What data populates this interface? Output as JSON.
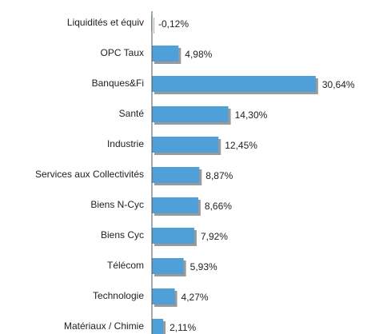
{
  "chart_data": {
    "type": "bar",
    "orientation": "horizontal",
    "categories": [
      "Liquidités et équiv",
      "OPC Taux",
      "Banques&Fi",
      "Santé",
      "Industrie",
      "Services aux Collectivités",
      "Biens N-Cyc",
      "Biens Cyc",
      "Télécom",
      "Technologie",
      "Matériaux / Chimie"
    ],
    "values": [
      -0.12,
      4.98,
      30.64,
      14.3,
      12.45,
      8.87,
      8.66,
      7.92,
      5.93,
      4.27,
      2.11
    ],
    "value_labels": [
      "-0,12%",
      "4,98%",
      "30,64%",
      "14,30%",
      "12,45%",
      "8,87%",
      "8,66%",
      "7,92%",
      "5,93%",
      "4,27%",
      "2,11%"
    ],
    "color": "#4f9fd9",
    "xlim": [
      0,
      35
    ]
  }
}
